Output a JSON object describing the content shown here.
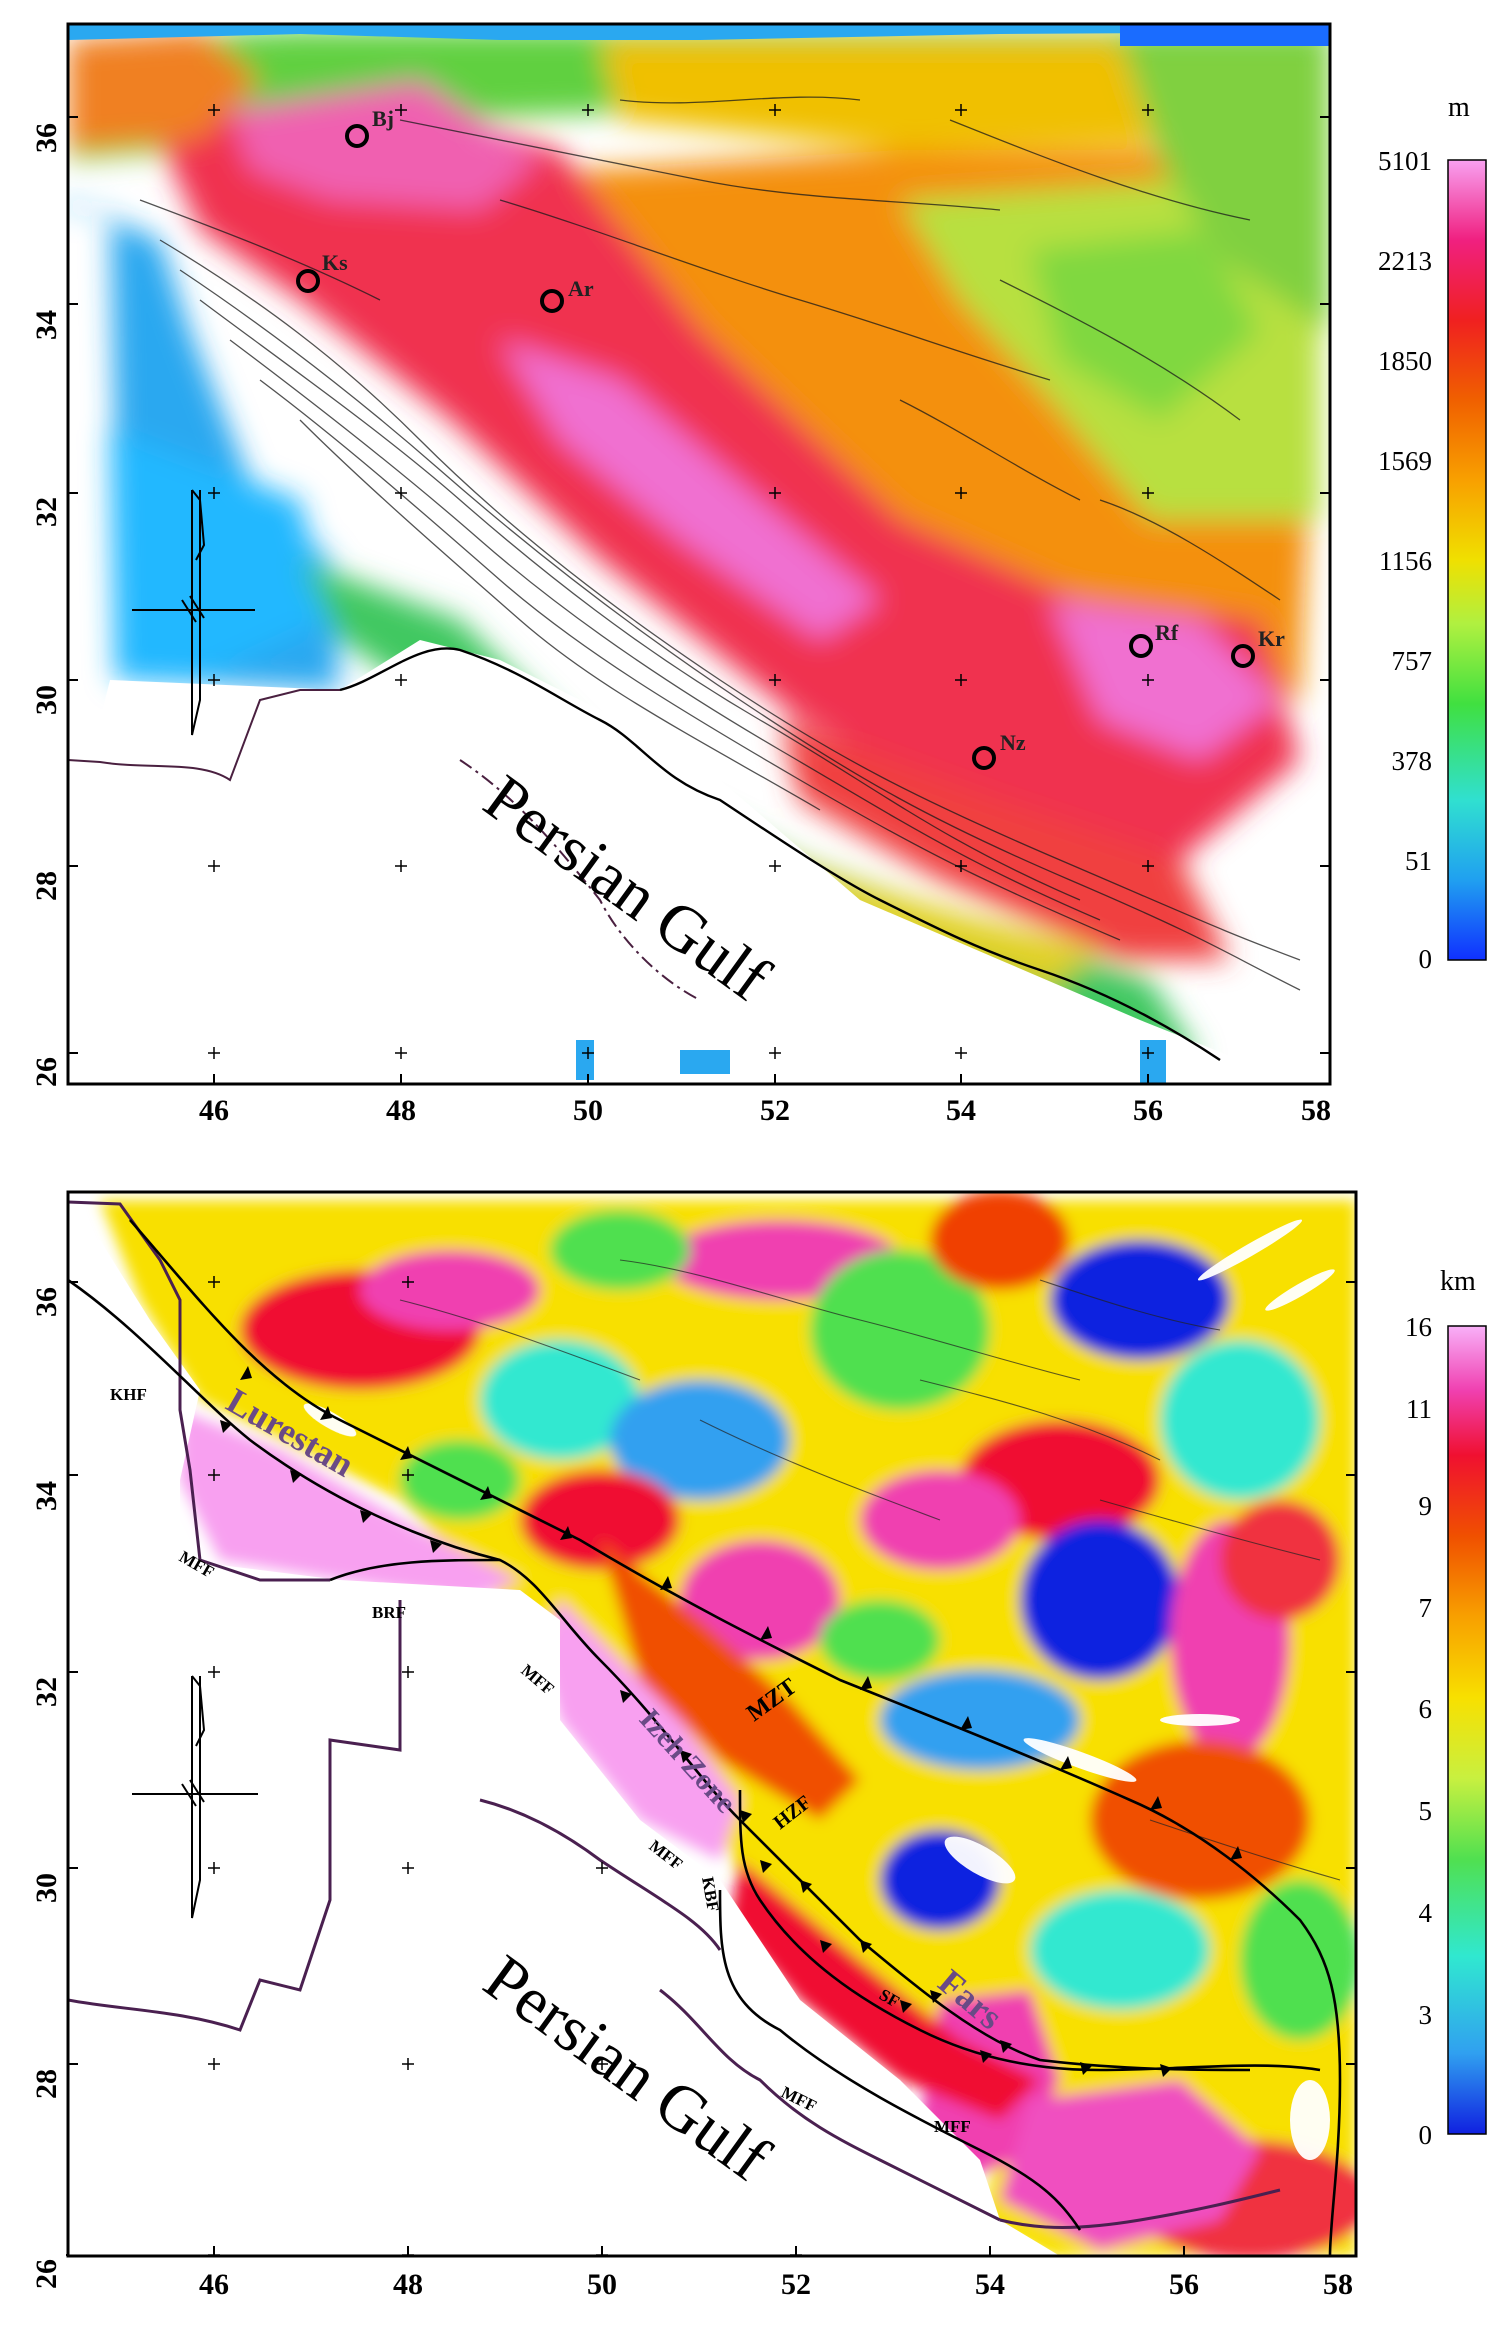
{
  "panels": [
    {
      "unit": "m",
      "colorbar_labels": [
        "5101",
        "2213",
        "1850",
        "1569",
        "1156",
        "757",
        "378",
        "51",
        "0"
      ],
      "x_ticks": [
        "46",
        "48",
        "50",
        "52",
        "54",
        "56",
        "58"
      ],
      "y_ticks": [
        "36",
        "34",
        "32",
        "30",
        "28",
        "26"
      ],
      "stations": [
        {
          "code": "Bj"
        },
        {
          "code": "Ks"
        },
        {
          "code": "Ar"
        },
        {
          "code": "Rf"
        },
        {
          "code": "Kr"
        },
        {
          "code": "Nz"
        }
      ],
      "sea_label": "Persian Gulf"
    },
    {
      "unit": "km",
      "colorbar_labels": [
        "16",
        "11",
        "9",
        "7",
        "6",
        "5",
        "4",
        "3",
        "0"
      ],
      "x_ticks": [
        "46",
        "48",
        "50",
        "52",
        "54",
        "56",
        "58"
      ],
      "y_ticks": [
        "36",
        "34",
        "32",
        "30",
        "28",
        "26"
      ],
      "fault_labels": [
        "KHF",
        "MFF",
        "BRF",
        "MFF",
        "MZT",
        "HZF",
        "MFF",
        "KBF",
        "SF",
        "MFF",
        "MFF"
      ],
      "zone_labels": [
        "Lurestan",
        "Izeh Zone",
        "Fars"
      ],
      "sea_label": "Persian Gulf"
    }
  ],
  "colors": {
    "elevation_scale": [
      "#1030ff",
      "#20a0f0",
      "#30e0d0",
      "#40e040",
      "#b0f040",
      "#f0e000",
      "#f8a000",
      "#f06000",
      "#f02020",
      "#f02080",
      "#f8a0f0"
    ],
    "thickness_scale": [
      "#1020e0",
      "#30a0f0",
      "#30e8d0",
      "#50e050",
      "#c8f040",
      "#f8e000",
      "#f8a000",
      "#f05000",
      "#f01030",
      "#f040b0",
      "#f8b0f8"
    ]
  }
}
